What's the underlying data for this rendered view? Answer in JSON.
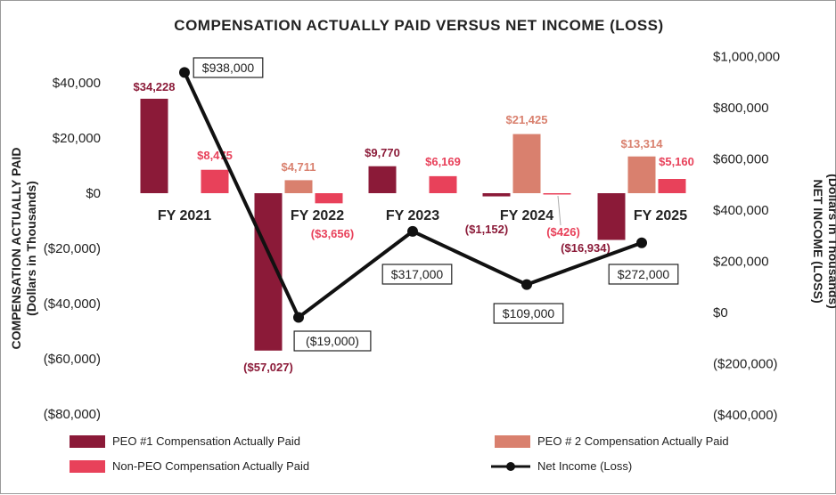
{
  "chart_data": {
    "type": "bar+line",
    "title": "COMPENSATION ACTUALLY PAID VERSUS NET INCOME (LOSS)",
    "categories": [
      "FY 2021",
      "FY 2022",
      "FY 2023",
      "FY 2024",
      "FY 2025"
    ],
    "y_left": {
      "label_line1": "COMPENSATION ACTUALLY PAID",
      "label_line2": "(Dollars in Thousands)",
      "range": [
        -80000,
        40000
      ],
      "ticks": [
        40000,
        20000,
        0,
        -20000,
        -40000,
        -60000,
        -80000
      ],
      "tick_labels": [
        "$40,000",
        "$20,000",
        "$0",
        "($20,000)",
        "($40,000)",
        "($60,000)",
        "($80,000)"
      ]
    },
    "y_right": {
      "label_line1": "NET INCOME (LOSS)",
      "label_line2": "(Dollars in Thousands)",
      "range": [
        -400000,
        1000000
      ],
      "ticks": [
        1000000,
        800000,
        600000,
        400000,
        200000,
        0,
        -200000,
        -400000
      ],
      "tick_labels": [
        "$1,000,000",
        "$800,000",
        "$600,000",
        "$400,000",
        "$200,000",
        "$0",
        "($200,000)",
        "($400,000)"
      ]
    },
    "series": [
      {
        "name": "PEO #1 Compensation Actually Paid",
        "color": "#8b1a38",
        "values": [
          34228,
          -57027,
          9770,
          -1152,
          -16934
        ],
        "labels": [
          "$34,228",
          "($57,027)",
          "$9,770",
          "($1,152)",
          "($16,934)"
        ]
      },
      {
        "name": "PEO # 2 Compensation Actually Paid",
        "color": "#d9806e",
        "values": [
          null,
          4711,
          null,
          21425,
          13314
        ],
        "labels": [
          "",
          "$4,711",
          "",
          "$21,425",
          "$13,314"
        ]
      },
      {
        "name": "Non-PEO Compensation Actually Paid",
        "color": "#e8415a",
        "values": [
          8475,
          -3656,
          6169,
          -426,
          5160
        ],
        "labels": [
          "$8,475",
          "($3,656)",
          "$6,169",
          "($426)",
          "$5,160"
        ]
      },
      {
        "name": "Net Income (Loss)",
        "type": "line",
        "axis": "right",
        "color": "#111111",
        "values": [
          938000,
          -19000,
          317000,
          109000,
          272000
        ],
        "labels": [
          "$938,000",
          "($19,000)",
          "$317,000",
          "$109,000",
          "$272,000"
        ]
      }
    ]
  }
}
